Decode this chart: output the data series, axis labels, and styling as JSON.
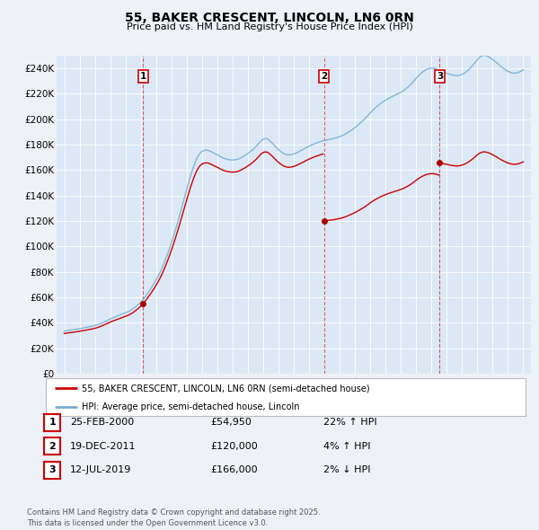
{
  "title": "55, BAKER CRESCENT, LINCOLN, LN6 0RN",
  "subtitle": "Price paid vs. HM Land Registry's House Price Index (HPI)",
  "background_color": "#eef2f7",
  "plot_bg_color": "#dce8f5",
  "ylim": [
    0,
    250000
  ],
  "yticks": [
    0,
    20000,
    40000,
    60000,
    80000,
    100000,
    120000,
    140000,
    160000,
    180000,
    200000,
    220000,
    240000
  ],
  "ytick_labels": [
    "£0",
    "£20K",
    "£40K",
    "£60K",
    "£80K",
    "£100K",
    "£120K",
    "£140K",
    "£160K",
    "£180K",
    "£200K",
    "£220K",
    "£240K"
  ],
  "xmin": 1994.5,
  "xmax": 2025.5,
  "sales": [
    {
      "year": 2000.15,
      "price": 54950,
      "label": "1"
    },
    {
      "year": 2011.97,
      "price": 120000,
      "label": "2"
    },
    {
      "year": 2019.54,
      "price": 166000,
      "label": "3"
    }
  ],
  "sale_line_color": "#cc0000",
  "hpi_line_color": "#7ab0d4",
  "sale_dot_color": "#aa0000",
  "vline_color": "#cc0000",
  "legend_label_red": "55, BAKER CRESCENT, LINCOLN, LN6 0RN (semi-detached house)",
  "legend_label_blue": "HPI: Average price, semi-detached house, Lincoln",
  "table_rows": [
    {
      "num": "1",
      "date": "25-FEB-2000",
      "price": "£54,950",
      "change": "22% ↑ HPI"
    },
    {
      "num": "2",
      "date": "19-DEC-2011",
      "price": "£120,000",
      "change": "4% ↑ HPI"
    },
    {
      "num": "3",
      "date": "12-JUL-2019",
      "price": "£166,000",
      "change": "2% ↓ HPI"
    }
  ],
  "footer": "Contains HM Land Registry data © Crown copyright and database right 2025.\nThis data is licensed under the Open Government Licence v3.0.",
  "hpi_data_x": [
    1995.0,
    1995.083,
    1995.167,
    1995.25,
    1995.333,
    1995.417,
    1995.5,
    1995.583,
    1995.667,
    1995.75,
    1995.833,
    1995.917,
    1996.0,
    1996.083,
    1996.167,
    1996.25,
    1996.333,
    1996.417,
    1996.5,
    1996.583,
    1996.667,
    1996.75,
    1996.833,
    1996.917,
    1997.0,
    1997.083,
    1997.167,
    1997.25,
    1997.333,
    1997.417,
    1997.5,
    1997.583,
    1997.667,
    1997.75,
    1997.833,
    1997.917,
    1998.0,
    1998.083,
    1998.167,
    1998.25,
    1998.333,
    1998.417,
    1998.5,
    1998.583,
    1998.667,
    1998.75,
    1998.833,
    1998.917,
    1999.0,
    1999.083,
    1999.167,
    1999.25,
    1999.333,
    1999.417,
    1999.5,
    1999.583,
    1999.667,
    1999.75,
    1999.833,
    1999.917,
    2000.0,
    2000.083,
    2000.167,
    2000.25,
    2000.333,
    2000.417,
    2000.5,
    2000.583,
    2000.667,
    2000.75,
    2000.833,
    2000.917,
    2001.0,
    2001.083,
    2001.167,
    2001.25,
    2001.333,
    2001.417,
    2001.5,
    2001.583,
    2001.667,
    2001.75,
    2001.833,
    2001.917,
    2002.0,
    2002.083,
    2002.167,
    2002.25,
    2002.333,
    2002.417,
    2002.5,
    2002.583,
    2002.667,
    2002.75,
    2002.833,
    2002.917,
    2003.0,
    2003.083,
    2003.167,
    2003.25,
    2003.333,
    2003.417,
    2003.5,
    2003.583,
    2003.667,
    2003.75,
    2003.833,
    2003.917,
    2004.0,
    2004.083,
    2004.167,
    2004.25,
    2004.333,
    2004.417,
    2004.5,
    2004.583,
    2004.667,
    2004.75,
    2004.833,
    2004.917,
    2005.0,
    2005.083,
    2005.167,
    2005.25,
    2005.333,
    2005.417,
    2005.5,
    2005.583,
    2005.667,
    2005.75,
    2005.833,
    2005.917,
    2006.0,
    2006.083,
    2006.167,
    2006.25,
    2006.333,
    2006.417,
    2006.5,
    2006.583,
    2006.667,
    2006.75,
    2006.833,
    2006.917,
    2007.0,
    2007.083,
    2007.167,
    2007.25,
    2007.333,
    2007.417,
    2007.5,
    2007.583,
    2007.667,
    2007.75,
    2007.833,
    2007.917,
    2008.0,
    2008.083,
    2008.167,
    2008.25,
    2008.333,
    2008.417,
    2008.5,
    2008.583,
    2008.667,
    2008.75,
    2008.833,
    2008.917,
    2009.0,
    2009.083,
    2009.167,
    2009.25,
    2009.333,
    2009.417,
    2009.5,
    2009.583,
    2009.667,
    2009.75,
    2009.833,
    2009.917,
    2010.0,
    2010.083,
    2010.167,
    2010.25,
    2010.333,
    2010.417,
    2010.5,
    2010.583,
    2010.667,
    2010.75,
    2010.833,
    2010.917,
    2011.0,
    2011.083,
    2011.167,
    2011.25,
    2011.333,
    2011.417,
    2011.5,
    2011.583,
    2011.667,
    2011.75,
    2011.833,
    2011.917,
    2012.0,
    2012.083,
    2012.167,
    2012.25,
    2012.333,
    2012.417,
    2012.5,
    2012.583,
    2012.667,
    2012.75,
    2012.833,
    2012.917,
    2013.0,
    2013.083,
    2013.167,
    2013.25,
    2013.333,
    2013.417,
    2013.5,
    2013.583,
    2013.667,
    2013.75,
    2013.833,
    2013.917,
    2014.0,
    2014.083,
    2014.167,
    2014.25,
    2014.333,
    2014.417,
    2014.5,
    2014.583,
    2014.667,
    2014.75,
    2014.833,
    2014.917,
    2015.0,
    2015.083,
    2015.167,
    2015.25,
    2015.333,
    2015.417,
    2015.5,
    2015.583,
    2015.667,
    2015.75,
    2015.833,
    2015.917,
    2016.0,
    2016.083,
    2016.167,
    2016.25,
    2016.333,
    2016.417,
    2016.5,
    2016.583,
    2016.667,
    2016.75,
    2016.833,
    2016.917,
    2017.0,
    2017.083,
    2017.167,
    2017.25,
    2017.333,
    2017.417,
    2017.5,
    2017.583,
    2017.667,
    2017.75,
    2017.833,
    2017.917,
    2018.0,
    2018.083,
    2018.167,
    2018.25,
    2018.333,
    2018.417,
    2018.5,
    2018.583,
    2018.667,
    2018.75,
    2018.833,
    2018.917,
    2019.0,
    2019.083,
    2019.167,
    2019.25,
    2019.333,
    2019.417,
    2019.5,
    2019.583,
    2019.667,
    2019.75,
    2019.833,
    2019.917,
    2020.0,
    2020.083,
    2020.167,
    2020.25,
    2020.333,
    2020.417,
    2020.5,
    2020.583,
    2020.667,
    2020.75,
    2020.833,
    2020.917,
    2021.0,
    2021.083,
    2021.167,
    2021.25,
    2021.333,
    2021.417,
    2021.5,
    2021.583,
    2021.667,
    2021.75,
    2021.833,
    2021.917,
    2022.0,
    2022.083,
    2022.167,
    2022.25,
    2022.333,
    2022.417,
    2022.5,
    2022.583,
    2022.667,
    2022.75,
    2022.833,
    2022.917,
    2023.0,
    2023.083,
    2023.167,
    2023.25,
    2023.333,
    2023.417,
    2023.5,
    2023.583,
    2023.667,
    2023.75,
    2023.833,
    2023.917,
    2024.0,
    2024.083,
    2024.167,
    2024.25,
    2024.333,
    2024.417,
    2024.5,
    2024.583,
    2024.667,
    2024.75,
    2024.833,
    2024.917,
    2025.0
  ],
  "hpi_data_y": [
    33500,
    33650,
    33800,
    33950,
    34100,
    34250,
    34400,
    34550,
    34700,
    34850,
    35000,
    35150,
    35300,
    35500,
    35700,
    35900,
    36100,
    36300,
    36500,
    36700,
    36900,
    37100,
    37300,
    37500,
    37800,
    38100,
    38400,
    38750,
    39150,
    39600,
    40000,
    40500,
    41000,
    41500,
    42000,
    42500,
    43000,
    43400,
    43800,
    44200,
    44600,
    45000,
    45400,
    45800,
    46200,
    46600,
    47000,
    47400,
    47800,
    48200,
    48600,
    49100,
    49700,
    50300,
    51000,
    51800,
    52600,
    53400,
    54300,
    55200,
    56200,
    57300,
    58500,
    59800,
    61200,
    62600,
    64000,
    65500,
    67000,
    68600,
    70200,
    71900,
    73600,
    75400,
    77300,
    79300,
    81500,
    83800,
    86200,
    88700,
    91300,
    94000,
    96800,
    99700,
    102700,
    105800,
    109000,
    112300,
    115700,
    119200,
    122700,
    126300,
    129900,
    133600,
    137300,
    141000,
    144700,
    148300,
    151800,
    155200,
    158400,
    161500,
    164300,
    166900,
    169200,
    171100,
    172700,
    173900,
    174700,
    175200,
    175500,
    175600,
    175700,
    175400,
    175100,
    174600,
    174100,
    173600,
    173100,
    172600,
    172100,
    171500,
    170900,
    170300,
    169800,
    169400,
    169000,
    168700,
    168500,
    168300,
    168100,
    168000,
    168000,
    168000,
    168100,
    168300,
    168500,
    168900,
    169400,
    169900,
    170500,
    171100,
    171700,
    172400,
    173100,
    173800,
    174500,
    175300,
    176200,
    177100,
    178100,
    179200,
    180400,
    181600,
    182700,
    183600,
    184300,
    184700,
    184800,
    184600,
    184100,
    183300,
    182400,
    181400,
    180300,
    179200,
    178100,
    177100,
    176200,
    175300,
    174500,
    173800,
    173200,
    172700,
    172300,
    172100,
    172000,
    172100,
    172200,
    172400,
    172700,
    173100,
    173500,
    174000,
    174500,
    175000,
    175600,
    176100,
    176700,
    177200,
    177800,
    178300,
    178800,
    179300,
    179800,
    180200,
    180600,
    181000,
    181400,
    181700,
    182100,
    182500,
    182800,
    183100,
    183400,
    183600,
    183800,
    184000,
    184200,
    184400,
    184600,
    184800,
    185100,
    185400,
    185700,
    186000,
    186300,
    186700,
    187100,
    187600,
    188100,
    188700,
    189300,
    189900,
    190600,
    191300,
    192000,
    192700,
    193400,
    194200,
    195100,
    196000,
    196900,
    197800,
    198700,
    199600,
    200600,
    201700,
    202800,
    204000,
    205100,
    206200,
    207200,
    208100,
    209000,
    209900,
    210700,
    211500,
    212300,
    213000,
    213700,
    214400,
    215000,
    215600,
    216200,
    216700,
    217200,
    217700,
    218200,
    218700,
    219200,
    219700,
    220200,
    220700,
    221200,
    221800,
    222500,
    223200,
    224000,
    224800,
    225700,
    226600,
    227600,
    228700,
    229800,
    231000,
    232200,
    233400,
    234400,
    235400,
    236300,
    237100,
    237800,
    238500,
    239000,
    239500,
    239800,
    240100,
    240200,
    240200,
    240000,
    239700,
    239300,
    238900,
    238400,
    238000,
    237500,
    237100,
    236700,
    236400,
    236100,
    235800,
    235500,
    235200,
    234900,
    234700,
    234500,
    234400,
    234300,
    234400,
    234600,
    234900,
    235300,
    235800,
    236400,
    237100,
    237900,
    238800,
    239800,
    240800,
    241900,
    243100,
    244300,
    245600,
    246900,
    248000,
    248900,
    249500,
    250000,
    250200,
    250200,
    249900,
    249500,
    249000,
    248400,
    247700,
    247000,
    246200,
    245400,
    244600,
    243700,
    242800,
    241900,
    241100,
    240300,
    239600,
    238900,
    238300,
    237700,
    237200,
    236800,
    236500,
    236300,
    236200,
    236300,
    236500,
    236800,
    237200,
    237700,
    238300,
    238900
  ]
}
